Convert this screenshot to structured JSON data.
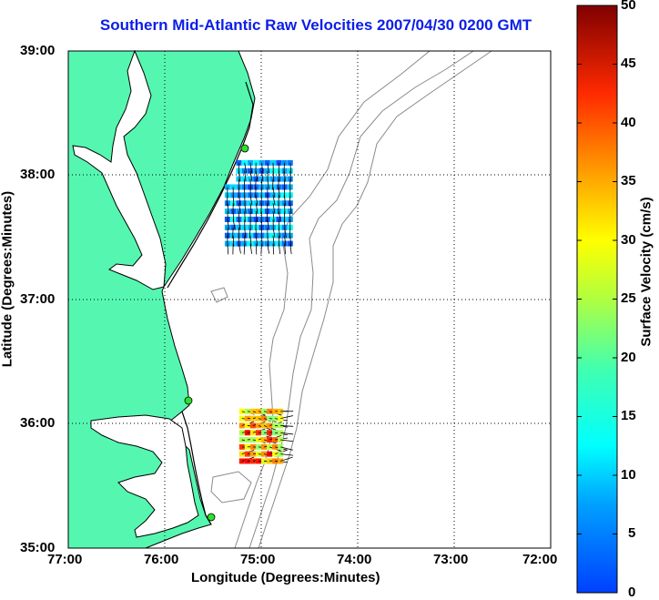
{
  "title": "Southern Mid-Atlantic Raw Velocities 2007/04/30 0200 GMT",
  "xlabel": "Longitude (Degrees:Minutes)",
  "ylabel": "Latitude (Degrees:Minutes)",
  "colorbar_label": "Surface Velocity (cm/s)",
  "x_ticks": [
    "77:00",
    "76:00",
    "75:00",
    "74:00",
    "73:00",
    "72:00"
  ],
  "y_ticks": [
    "39:00",
    "38:00",
    "37:00",
    "36:00",
    "35:00"
  ],
  "colorbar_ticks": [
    "50",
    "45",
    "40",
    "35",
    "30",
    "25",
    "20",
    "15",
    "10",
    "5",
    "0"
  ],
  "colors": {
    "title": "#0b1ee8",
    "land": "#55f7b0",
    "coastline": "#000000",
    "bathymetry": "#8a8a8a",
    "grid": "#000000",
    "site_marker": "#2ee02e"
  },
  "chart_data": {
    "type": "map",
    "title": "Southern Mid-Atlantic Raw Velocities 2007/04/30 0200 GMT",
    "xlabel": "Longitude (Degrees:Minutes)",
    "ylabel": "Latitude (Degrees:Minutes)",
    "xlim": [
      -77,
      -72
    ],
    "ylim": [
      35,
      39
    ],
    "grid": true,
    "colorbar": {
      "label": "Surface Velocity (cm/s)",
      "range": [
        0,
        50
      ],
      "colormap": "jet"
    },
    "radar_sites": [
      {
        "lon": -75.13,
        "lat": 38.22
      },
      {
        "lon": -75.75,
        "lat": 36.18
      },
      {
        "lon": -75.48,
        "lat": 35.25
      }
    ],
    "vector_fields": [
      {
        "lon_range": [
          -75.35,
          -74.7
        ],
        "lat_range": [
          37.45,
          38.1
        ],
        "speed_range": [
          10,
          20
        ]
      },
      {
        "lon_range": [
          -75.2,
          -74.8
        ],
        "lat_range": [
          35.7,
          36.1
        ],
        "speed_range": [
          25,
          45
        ]
      }
    ]
  }
}
